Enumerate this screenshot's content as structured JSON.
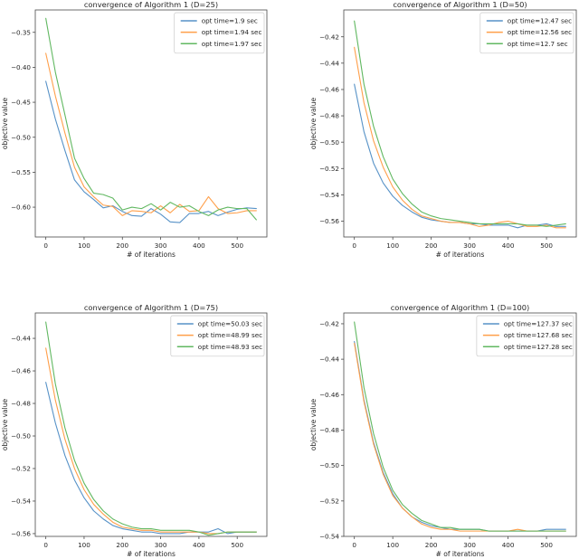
{
  "figure": {
    "background": "#ffffff",
    "series_colors": [
      "#5792c7",
      "#ff9f4a",
      "#61b861"
    ],
    "spine_color": "#4a4a4a",
    "text_color": "#262626",
    "legend_border_color": "#c9c9c9"
  },
  "chart_data": [
    {
      "type": "line",
      "title": "convergence of Algorithm 1 (D=25)",
      "xlabel": "# of iterations",
      "ylabel": "objective value",
      "legend_position": "upper right",
      "grid": false,
      "xlim": [
        -27.5,
        577.5
      ],
      "ylim": [
        -0.6426,
        -0.318
      ],
      "xticks": [
        0,
        100,
        200,
        300,
        400,
        500
      ],
      "xtick_labels": [
        "0",
        "100",
        "200",
        "300",
        "400",
        "500"
      ],
      "yticks": [
        -0.35,
        -0.4,
        -0.45,
        -0.5,
        -0.55,
        -0.6
      ],
      "ytick_labels": [
        "−0.35",
        "−0.40",
        "−0.45",
        "−0.50",
        "−0.55",
        "−0.60"
      ],
      "x": [
        0,
        25,
        50,
        75,
        100,
        125,
        150,
        175,
        200,
        225,
        250,
        275,
        300,
        325,
        350,
        375,
        400,
        425,
        450,
        475,
        500,
        525,
        550
      ],
      "series": [
        {
          "name": "opt time=1.9 sec",
          "values": [
            -0.42,
            -0.474,
            -0.519,
            -0.561,
            -0.578,
            -0.589,
            -0.601,
            -0.598,
            -0.606,
            -0.612,
            -0.613,
            -0.602,
            -0.61,
            -0.621,
            -0.622,
            -0.609,
            -0.609,
            -0.606,
            -0.612,
            -0.607,
            -0.603,
            -0.601,
            -0.602
          ]
        },
        {
          "name": "opt time=1.94 sec",
          "values": [
            -0.38,
            -0.441,
            -0.494,
            -0.543,
            -0.571,
            -0.585,
            -0.597,
            -0.599,
            -0.612,
            -0.605,
            -0.606,
            -0.608,
            -0.598,
            -0.608,
            -0.596,
            -0.606,
            -0.605,
            -0.585,
            -0.602,
            -0.609,
            -0.608,
            -0.605,
            -0.605
          ]
        },
        {
          "name": "opt time=1.97 sec",
          "values": [
            -0.33,
            -0.407,
            -0.468,
            -0.53,
            -0.559,
            -0.58,
            -0.582,
            -0.587,
            -0.604,
            -0.6,
            -0.602,
            -0.595,
            -0.604,
            -0.593,
            -0.6,
            -0.598,
            -0.606,
            -0.612,
            -0.604,
            -0.6,
            -0.602,
            -0.602,
            -0.618
          ]
        }
      ]
    },
    {
      "type": "line",
      "title": "convergence of Algorithm 1 (D=50)",
      "xlabel": "# of iterations",
      "ylabel": "objective value",
      "legend_position": "upper right",
      "grid": false,
      "xlim": [
        -27.5,
        577.5
      ],
      "ylim": [
        -0.572,
        -0.3996
      ],
      "xticks": [
        0,
        100,
        200,
        300,
        400,
        500
      ],
      "xtick_labels": [
        "0",
        "100",
        "200",
        "300",
        "400",
        "500"
      ],
      "yticks": [
        -0.42,
        -0.44,
        -0.46,
        -0.48,
        -0.5,
        -0.52,
        -0.54,
        -0.56
      ],
      "ytick_labels": [
        "−0.42",
        "−0.44",
        "−0.46",
        "−0.48",
        "−0.50",
        "−0.52",
        "−0.54",
        "−0.56"
      ],
      "x": [
        0,
        25,
        50,
        75,
        100,
        125,
        150,
        175,
        200,
        225,
        250,
        275,
        300,
        325,
        350,
        375,
        400,
        425,
        450,
        475,
        500,
        525,
        550
      ],
      "series": [
        {
          "name": "opt time=12.47 sec",
          "values": [
            -0.456,
            -0.492,
            -0.516,
            -0.531,
            -0.541,
            -0.548,
            -0.553,
            -0.557,
            -0.559,
            -0.56,
            -0.561,
            -0.561,
            -0.562,
            -0.562,
            -0.563,
            -0.563,
            -0.563,
            -0.565,
            -0.563,
            -0.563,
            -0.562,
            -0.564,
            -0.564
          ]
        },
        {
          "name": "opt time=12.56 sec",
          "values": [
            -0.428,
            -0.47,
            -0.499,
            -0.519,
            -0.534,
            -0.544,
            -0.551,
            -0.556,
            -0.558,
            -0.56,
            -0.561,
            -0.561,
            -0.562,
            -0.564,
            -0.563,
            -0.561,
            -0.56,
            -0.562,
            -0.564,
            -0.564,
            -0.563,
            -0.565,
            -0.565
          ]
        },
        {
          "name": "opt time=12.7 sec",
          "values": [
            -0.408,
            -0.456,
            -0.488,
            -0.511,
            -0.528,
            -0.539,
            -0.547,
            -0.553,
            -0.556,
            -0.558,
            -0.559,
            -0.56,
            -0.561,
            -0.562,
            -0.562,
            -0.562,
            -0.562,
            -0.562,
            -0.563,
            -0.563,
            -0.564,
            -0.563,
            -0.562
          ]
        }
      ]
    },
    {
      "type": "line",
      "title": "convergence of Algorithm 1 (D=75)",
      "xlabel": "# of iterations",
      "ylabel": "objective value",
      "legend_position": "upper right",
      "grid": false,
      "xlim": [
        -27.5,
        577.5
      ],
      "ylim": [
        -0.5617,
        -0.4244
      ],
      "xticks": [
        0,
        100,
        200,
        300,
        400,
        500
      ],
      "xtick_labels": [
        "0",
        "100",
        "200",
        "300",
        "400",
        "500"
      ],
      "yticks": [
        -0.44,
        -0.46,
        -0.48,
        -0.5,
        -0.52,
        -0.54,
        -0.56
      ],
      "ytick_labels": [
        "−0.44",
        "−0.46",
        "−0.48",
        "−0.50",
        "−0.52",
        "−0.54",
        "−0.56"
      ],
      "x": [
        0,
        25,
        50,
        75,
        100,
        125,
        150,
        175,
        200,
        225,
        250,
        275,
        300,
        325,
        350,
        375,
        400,
        425,
        450,
        475,
        500,
        525,
        550
      ],
      "series": [
        {
          "name": "opt time=50.03 sec",
          "values": [
            -0.467,
            -0.492,
            -0.512,
            -0.527,
            -0.538,
            -0.546,
            -0.551,
            -0.555,
            -0.557,
            -0.558,
            -0.559,
            -0.559,
            -0.56,
            -0.56,
            -0.56,
            -0.559,
            -0.559,
            -0.559,
            -0.557,
            -0.56,
            -0.559,
            -0.559,
            -0.559
          ]
        },
        {
          "name": "opt time=48.99 sec",
          "values": [
            -0.446,
            -0.478,
            -0.502,
            -0.52,
            -0.533,
            -0.542,
            -0.548,
            -0.553,
            -0.556,
            -0.557,
            -0.558,
            -0.558,
            -0.559,
            -0.559,
            -0.559,
            -0.559,
            -0.559,
            -0.56,
            -0.56,
            -0.559,
            -0.559,
            -0.559,
            -0.559
          ]
        },
        {
          "name": "opt time=48.93 sec",
          "values": [
            -0.43,
            -0.468,
            -0.495,
            -0.515,
            -0.529,
            -0.539,
            -0.546,
            -0.551,
            -0.554,
            -0.556,
            -0.557,
            -0.557,
            -0.558,
            -0.558,
            -0.558,
            -0.558,
            -0.559,
            -0.561,
            -0.56,
            -0.559,
            -0.559,
            -0.559,
            -0.559
          ]
        }
      ]
    },
    {
      "type": "line",
      "title": "convergence of Algorithm 1 (D=100)",
      "xlabel": "# of iterations",
      "ylabel": "objective value",
      "legend_position": "upper right",
      "grid": false,
      "xlim": [
        -27.5,
        577.5
      ],
      "ylim": [
        -0.54,
        -0.4139
      ],
      "xticks": [
        0,
        100,
        200,
        300,
        400,
        500
      ],
      "xtick_labels": [
        "0",
        "100",
        "200",
        "300",
        "400",
        "500"
      ],
      "yticks": [
        -0.42,
        -0.44,
        -0.46,
        -0.48,
        -0.5,
        -0.52,
        -0.54
      ],
      "ytick_labels": [
        "−0.42",
        "−0.44",
        "−0.46",
        "−0.48",
        "−0.50",
        "−0.52",
        "−0.54"
      ],
      "x": [
        0,
        25,
        50,
        75,
        100,
        125,
        150,
        175,
        200,
        225,
        250,
        275,
        300,
        325,
        350,
        375,
        400,
        425,
        450,
        475,
        500,
        525,
        550
      ],
      "series": [
        {
          "name": "opt time=127.37 sec",
          "values": [
            -0.43,
            -0.463,
            -0.487,
            -0.504,
            -0.516,
            -0.524,
            -0.529,
            -0.532,
            -0.534,
            -0.535,
            -0.536,
            -0.536,
            -0.536,
            -0.536,
            -0.537,
            -0.537,
            -0.537,
            -0.537,
            -0.537,
            -0.537,
            -0.536,
            -0.536,
            -0.536
          ]
        },
        {
          "name": "opt time=127.68 sec",
          "values": [
            -0.431,
            -0.464,
            -0.488,
            -0.505,
            -0.517,
            -0.524,
            -0.529,
            -0.533,
            -0.535,
            -0.536,
            -0.536,
            -0.537,
            -0.537,
            -0.537,
            -0.537,
            -0.537,
            -0.537,
            -0.536,
            -0.537,
            -0.537,
            -0.537,
            -0.537,
            -0.537
          ]
        },
        {
          "name": "opt time=127.28 sec",
          "values": [
            -0.419,
            -0.456,
            -0.482,
            -0.501,
            -0.514,
            -0.522,
            -0.527,
            -0.531,
            -0.533,
            -0.535,
            -0.535,
            -0.536,
            -0.536,
            -0.536,
            -0.537,
            -0.537,
            -0.537,
            -0.537,
            -0.537,
            -0.537,
            -0.537,
            -0.537,
            -0.537
          ]
        }
      ]
    }
  ]
}
